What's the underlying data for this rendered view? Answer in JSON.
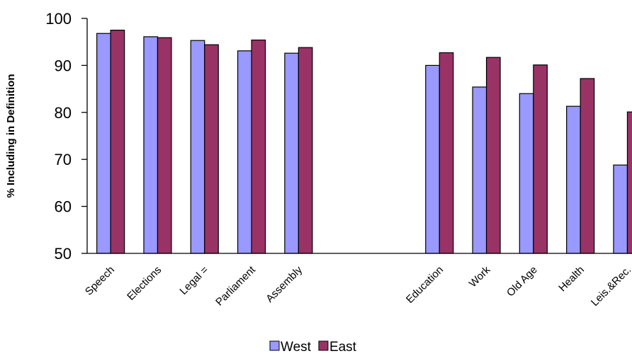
{
  "chart_data": {
    "type": "bar",
    "title": "",
    "xlabel": "",
    "ylabel": "% Including in Definition",
    "ylim": [
      50,
      100
    ],
    "yticks": [
      50,
      60,
      70,
      80,
      90,
      100
    ],
    "grid": false,
    "legend_position": "bottom",
    "categories": [
      "Speech",
      "Elections",
      "Legal =",
      "Parliament",
      "Assembly",
      "",
      "",
      "Education",
      "Work",
      "Old Age",
      "Health",
      "Leis.&Rec."
    ],
    "series": [
      {
        "name": "West",
        "color": "#9999ff",
        "values": [
          96.8,
          96.1,
          95.3,
          93.1,
          92.6,
          null,
          null,
          90.0,
          85.4,
          84.0,
          81.3,
          68.8
        ]
      },
      {
        "name": "East",
        "color": "#993366",
        "values": [
          97.5,
          95.9,
          94.4,
          95.4,
          93.8,
          null,
          null,
          92.7,
          91.7,
          90.1,
          87.2,
          80.1
        ]
      }
    ]
  }
}
